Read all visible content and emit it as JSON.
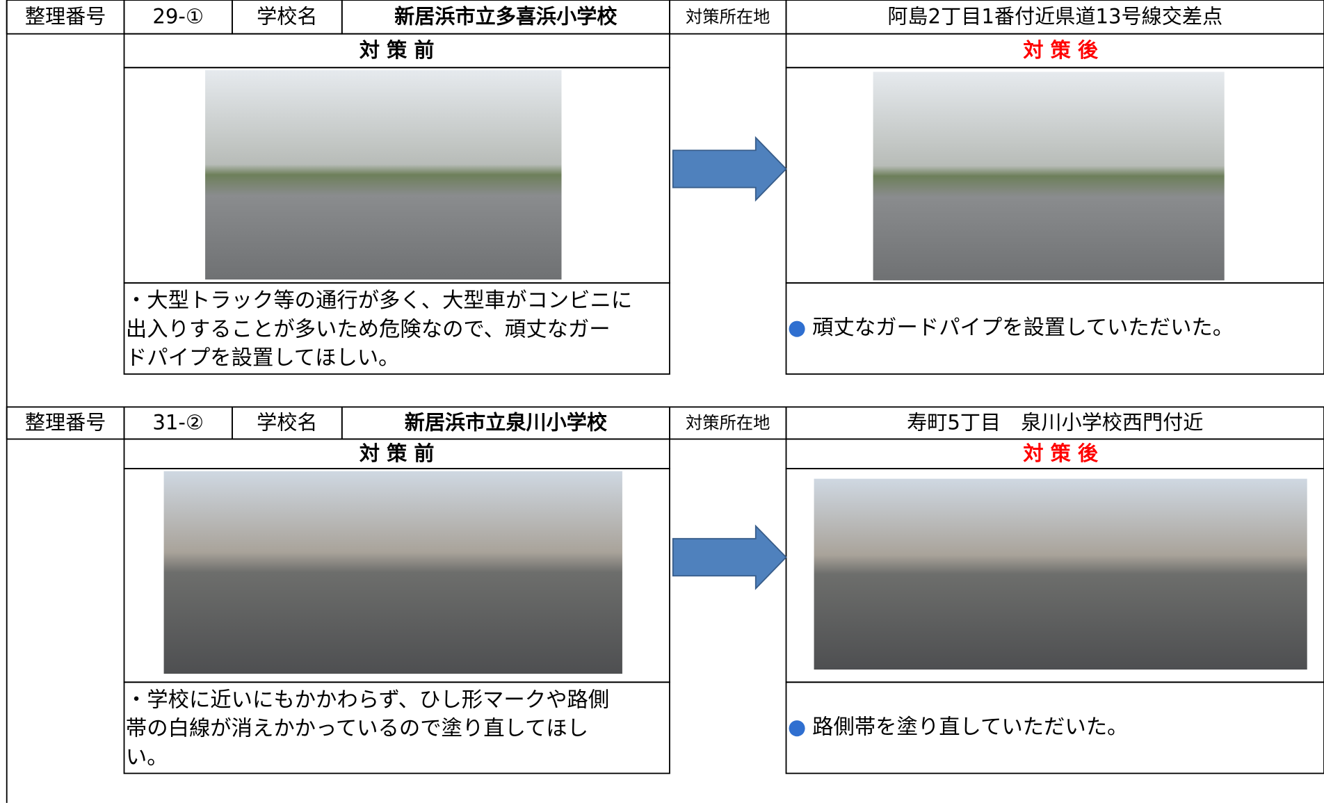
{
  "records": [
    {
      "number_label": "整理番号",
      "number": "29-①",
      "school_label": "学校名",
      "school": "新居浜市立多喜浜小学校",
      "location_label": "対策所在地",
      "location": "阿島2丁目1番付近県道13号線交差点",
      "before_label": "対 策 前",
      "after_label": "対 策 後",
      "before_text": [
        "・大型トラック等の通行が多く、大型車がコンビニに",
        "出入りすることが多いため危険なので、頑丈なガー",
        "ドパイプを設置してほしい。"
      ],
      "after_bullet": "●",
      "after_text": "頑丈なガードパイプを設置していただいた。"
    },
    {
      "number_label": "整理番号",
      "number": "31-②",
      "school_label": "学校名",
      "school": "新居浜市立泉川小学校",
      "location_label": "対策所在地",
      "location": "寿町5丁目　泉川小学校西門付近",
      "before_label": "対 策 前",
      "after_label": "対 策 後",
      "before_text": [
        "・学校に近いにもかかわらず、ひし形マークや路側",
        "帯の白線が消えかかっているので塗り直してほし",
        "い。"
      ],
      "after_bullet": "●",
      "after_text": "路側帯を塗り直していただいた。"
    }
  ]
}
